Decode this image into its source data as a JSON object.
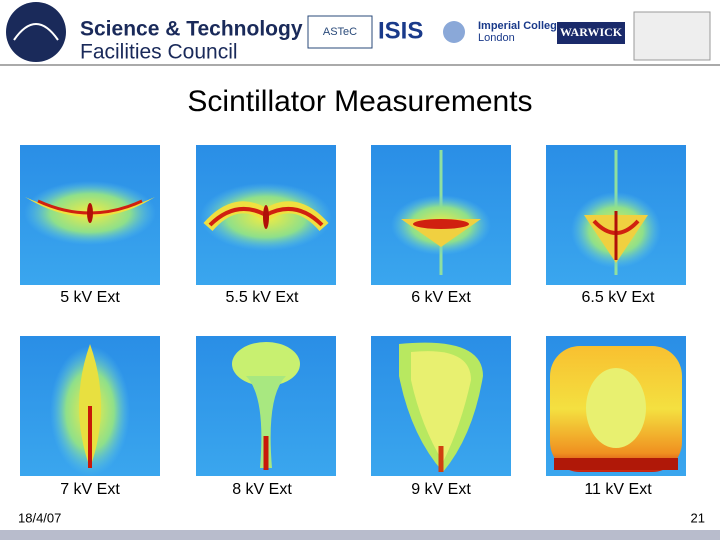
{
  "header": {
    "org_line1": "Science & Technology",
    "org_line2": "Facilities Council",
    "logos": [
      "ASTeC",
      "ISIS",
      "Imperial College",
      "London",
      "WARWICK"
    ]
  },
  "title": "Scintillator Measurements",
  "panels": [
    "5 kV Ext",
    "5.5 kV Ext",
    "6 kV Ext",
    "6.5 kV Ext",
    "7 kV Ext",
    "8 kV Ext",
    "9 kV Ext",
    "11 kV Ext"
  ],
  "footer": {
    "date": "18/4/07",
    "page": "21"
  }
}
